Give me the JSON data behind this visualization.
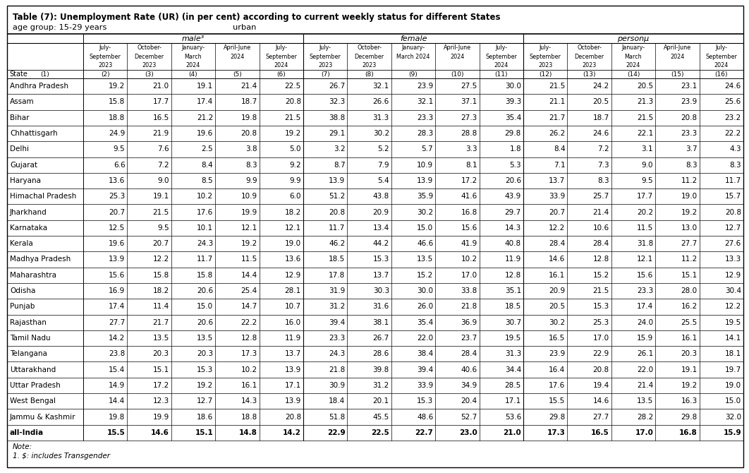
{
  "title": "Table (7): Unemployment Rate (UR) (in per cent) according to current weekly status for different States",
  "subtitle_left": "age group: 15-29 years",
  "subtitle_center": "urban",
  "col_groups": [
    "male³",
    "female",
    "personµ"
  ],
  "col_headers_line1": [
    "July-",
    "October-",
    "January-",
    "April-June",
    "July-",
    "July-",
    "October-",
    "January-",
    "April-June",
    "July-",
    "July-",
    "October-",
    "January-",
    "April-June",
    "July-"
  ],
  "col_headers_line2": [
    "September",
    "December",
    "March",
    "2024",
    "September",
    "September",
    "December",
    "March 2024",
    "2024",
    "September",
    "September",
    "December",
    "March",
    "2024",
    "September"
  ],
  "col_headers_line3": [
    "2023",
    "2023",
    "2024",
    "",
    "2024",
    "2023",
    "2023",
    "",
    "",
    "2024",
    "2023",
    "2023",
    "2024",
    "",
    "2024"
  ],
  "col_nums": [
    "(2)",
    "(3)",
    "(4)",
    "(5)",
    "(6)",
    "(7)",
    "(8)",
    "(9)",
    "(10)",
    "(11)",
    "(12)",
    "(13)",
    "(14)",
    "(15)",
    "(16)"
  ],
  "states": [
    "Andhra Pradesh",
    "Assam",
    "Bihar",
    "Chhattisgarh",
    "Delhi",
    "Gujarat",
    "Haryana",
    "Himachal Pradesh",
    "Jharkhand",
    "Karnataka",
    "Kerala",
    "Madhya Pradesh",
    "Maharashtra",
    "Odisha",
    "Punjab",
    "Rajasthan",
    "Tamil Nadu",
    "Telangana",
    "Uttarakhand",
    "Uttar Pradesh",
    "West Bengal",
    "Jammu & Kashmir",
    "all-India"
  ],
  "data": [
    [
      19.2,
      21.0,
      19.1,
      21.4,
      22.5,
      26.7,
      32.1,
      23.9,
      27.5,
      30.0,
      21.5,
      24.2,
      20.5,
      23.1,
      24.6
    ],
    [
      15.8,
      17.7,
      17.4,
      18.7,
      20.8,
      32.3,
      26.6,
      32.1,
      37.1,
      39.3,
      21.1,
      20.5,
      21.3,
      23.9,
      25.6
    ],
    [
      18.8,
      16.5,
      21.2,
      19.8,
      21.5,
      38.8,
      31.3,
      23.3,
      27.3,
      35.4,
      21.7,
      18.7,
      21.5,
      20.8,
      23.2
    ],
    [
      24.9,
      21.9,
      19.6,
      20.8,
      19.2,
      29.1,
      30.2,
      28.3,
      28.8,
      29.8,
      26.2,
      24.6,
      22.1,
      23.3,
      22.2
    ],
    [
      9.5,
      7.6,
      2.5,
      3.8,
      5.0,
      3.2,
      5.2,
      5.7,
      3.3,
      1.8,
      8.4,
      7.2,
      3.1,
      3.7,
      4.3
    ],
    [
      6.6,
      7.2,
      8.4,
      8.3,
      9.2,
      8.7,
      7.9,
      10.9,
      8.1,
      5.3,
      7.1,
      7.3,
      9.0,
      8.3,
      8.3
    ],
    [
      13.6,
      9.0,
      8.5,
      9.9,
      9.9,
      13.9,
      5.4,
      13.9,
      17.2,
      20.6,
      13.7,
      8.3,
      9.5,
      11.2,
      11.7
    ],
    [
      25.3,
      19.1,
      10.2,
      10.9,
      6.0,
      51.2,
      43.8,
      35.9,
      41.6,
      43.9,
      33.9,
      25.7,
      17.7,
      19.0,
      15.7
    ],
    [
      20.7,
      21.5,
      17.6,
      19.9,
      18.2,
      20.8,
      20.9,
      30.2,
      16.8,
      29.7,
      20.7,
      21.4,
      20.2,
      19.2,
      20.8
    ],
    [
      12.5,
      9.5,
      10.1,
      12.1,
      12.1,
      11.7,
      13.4,
      15.0,
      15.6,
      14.3,
      12.2,
      10.6,
      11.5,
      13.0,
      12.7
    ],
    [
      19.6,
      20.7,
      24.3,
      19.2,
      19.0,
      46.2,
      44.2,
      46.6,
      41.9,
      40.8,
      28.4,
      28.4,
      31.8,
      27.7,
      27.6
    ],
    [
      13.9,
      12.2,
      11.7,
      11.5,
      13.6,
      18.5,
      15.3,
      13.5,
      10.2,
      11.9,
      14.6,
      12.8,
      12.1,
      11.2,
      13.3
    ],
    [
      15.6,
      15.8,
      15.8,
      14.4,
      12.9,
      17.8,
      13.7,
      15.2,
      17.0,
      12.8,
      16.1,
      15.2,
      15.6,
      15.1,
      12.9
    ],
    [
      16.9,
      18.2,
      20.6,
      25.4,
      28.1,
      31.9,
      30.3,
      30.0,
      33.8,
      35.1,
      20.9,
      21.5,
      23.3,
      28.0,
      30.4
    ],
    [
      17.4,
      11.4,
      15.0,
      14.7,
      10.7,
      31.2,
      31.6,
      26.0,
      21.8,
      18.5,
      20.5,
      15.3,
      17.4,
      16.2,
      12.2
    ],
    [
      27.7,
      21.7,
      20.6,
      22.2,
      16.0,
      39.4,
      38.1,
      35.4,
      36.9,
      30.7,
      30.2,
      25.3,
      24.0,
      25.5,
      19.5
    ],
    [
      14.2,
      13.5,
      13.5,
      12.8,
      11.9,
      23.3,
      26.7,
      22.0,
      23.7,
      19.5,
      16.5,
      17.0,
      15.9,
      16.1,
      14.1
    ],
    [
      23.8,
      20.3,
      20.3,
      17.3,
      13.7,
      24.3,
      28.6,
      38.4,
      28.4,
      31.3,
      23.9,
      22.9,
      26.1,
      20.3,
      18.1
    ],
    [
      15.4,
      15.1,
      15.3,
      10.2,
      13.9,
      21.8,
      39.8,
      39.4,
      40.6,
      34.4,
      16.4,
      20.8,
      22.0,
      19.1,
      19.7
    ],
    [
      14.9,
      17.2,
      19.2,
      16.1,
      17.1,
      30.9,
      31.2,
      33.9,
      34.9,
      28.5,
      17.6,
      19.4,
      21.4,
      19.2,
      19.0
    ],
    [
      14.4,
      12.3,
      12.7,
      14.3,
      13.9,
      18.4,
      20.1,
      15.3,
      20.4,
      17.1,
      15.5,
      14.6,
      13.5,
      16.3,
      15.0
    ],
    [
      19.8,
      19.9,
      18.6,
      18.8,
      20.8,
      51.8,
      45.5,
      48.6,
      52.7,
      53.6,
      29.8,
      27.7,
      28.2,
      29.8,
      32.0
    ],
    [
      15.5,
      14.6,
      15.1,
      14.8,
      14.2,
      22.9,
      22.5,
      22.7,
      23.0,
      21.0,
      17.3,
      16.5,
      17.0,
      16.8,
      15.9
    ]
  ]
}
